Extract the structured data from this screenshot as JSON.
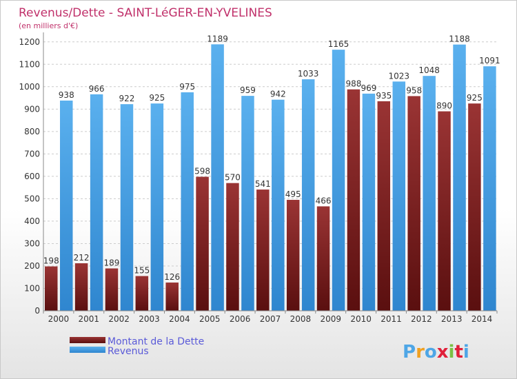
{
  "chart_data": {
    "type": "bar",
    "title": "Revenus/Dette - SAINT-LéGER-EN-YVELINES",
    "subtitle": "(en milliers d'€)",
    "categories": [
      "2000",
      "2001",
      "2002",
      "2003",
      "2004",
      "2005",
      "2006",
      "2007",
      "2008",
      "2009",
      "2010",
      "2011",
      "2012",
      "2013",
      "2014"
    ],
    "series": [
      {
        "name": "Montant de la Dette",
        "values": [
          198,
          212,
          189,
          155,
          126,
          598,
          570,
          541,
          495,
          466,
          988,
          935,
          958,
          890,
          925
        ],
        "color": "#8b2a2a"
      },
      {
        "name": "Revenus",
        "values": [
          938,
          966,
          922,
          925,
          975,
          1189,
          959,
          942,
          1033,
          1165,
          969,
          1023,
          1048,
          1188,
          1091
        ],
        "color": "#4ea6e6"
      }
    ],
    "y_ticks": [
      0,
      100,
      200,
      300,
      400,
      500,
      600,
      700,
      800,
      900,
      1000,
      1100,
      1200
    ],
    "ylim": [
      0,
      1230
    ],
    "grid": true,
    "legend_position": "bottom-left"
  },
  "branding": {
    "logo_text": "Proxiti"
  }
}
